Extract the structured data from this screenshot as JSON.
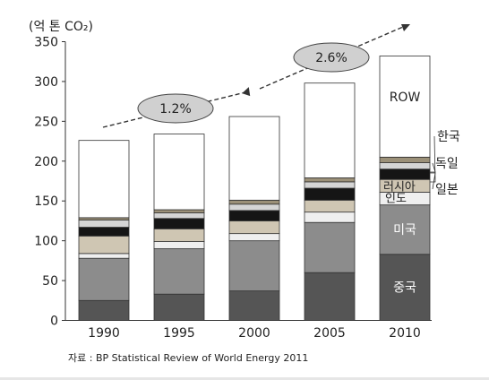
{
  "chart_data": {
    "type": "bar",
    "stacked": true,
    "ylabel": "(억 톤 CO₂)",
    "ylim": [
      0,
      350
    ],
    "yticks": [
      0,
      50,
      100,
      150,
      200,
      250,
      300,
      350
    ],
    "categories": [
      "1990",
      "1995",
      "2000",
      "2005",
      "2010"
    ],
    "series": [
      {
        "name": "중국",
        "color": "#555555",
        "values": [
          25,
          33,
          37,
          60,
          83
        ]
      },
      {
        "name": "미국",
        "color": "#8c8c8c",
        "values": [
          53,
          57,
          63,
          63,
          62
        ]
      },
      {
        "name": "인도",
        "color": "#efefef",
        "values": [
          6,
          9,
          9,
          13,
          16
        ]
      },
      {
        "name": "러시아",
        "color": "#cfc6b3",
        "values": [
          22,
          16,
          16,
          15,
          16
        ]
      },
      {
        "name": "일본",
        "color": "#151515",
        "values": [
          11,
          13,
          13,
          15,
          13
        ]
      },
      {
        "name": "독일",
        "color": "#d5d5d5",
        "values": [
          9,
          7,
          8,
          8,
          8
        ]
      },
      {
        "name": "한국",
        "color": "#9b9078",
        "values": [
          3,
          4,
          5,
          5,
          7
        ]
      },
      {
        "name": "ROW",
        "color": "#ffffff",
        "values": [
          97,
          95,
          105,
          119,
          127
        ]
      }
    ],
    "annotations": [
      {
        "text": "1.2%"
      },
      {
        "text": "2.6%"
      }
    ]
  },
  "source_note": "자료 : BP Statistical Review of World Energy 2011"
}
